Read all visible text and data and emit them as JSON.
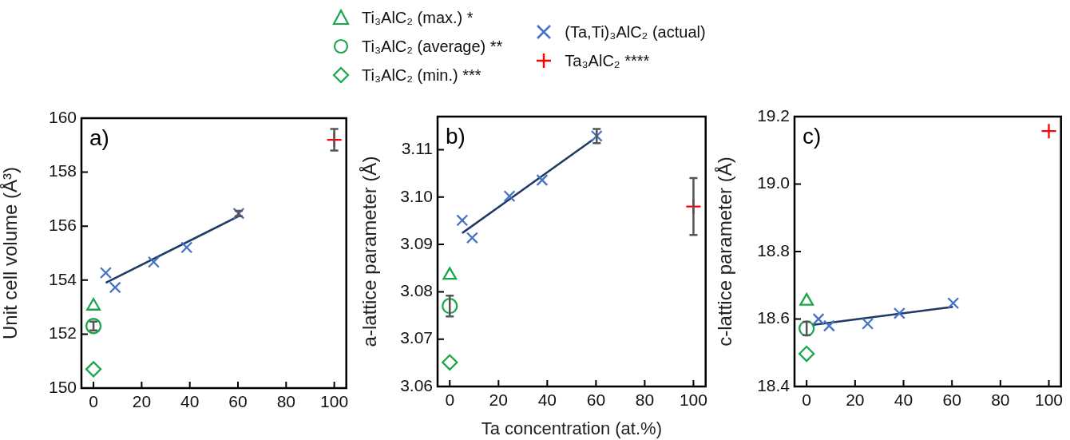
{
  "chart_data": [
    {
      "type": "scatter",
      "ylabel": "Unit cell volume (Å³)",
      "annotations": [
        "a)"
      ],
      "legend": "top",
      "xlim": [
        -5,
        105
      ],
      "xticks": [
        0,
        20,
        40,
        60,
        80,
        100
      ],
      "ylim": [
        150,
        160
      ],
      "yticks": [
        150,
        152,
        154,
        156,
        158,
        160
      ],
      "series": [
        {
          "name": "Ti₃AlC₂ (max.) *",
          "color": "#1aa64a",
          "marker": "triangle",
          "x": [
            0
          ],
          "values": [
            153.04
          ]
        },
        {
          "name": "Ti₃AlC₂ (average) **",
          "color": "#1aa64a",
          "marker": "circle",
          "x": [
            0
          ],
          "values": [
            152.3
          ],
          "errors": [
            0.16
          ]
        },
        {
          "name": "Ti₃AlC₂ (min.) ***",
          "color": "#1aa64a",
          "marker": "diamond",
          "x": [
            0
          ],
          "values": [
            150.7
          ]
        },
        {
          "name": "(Ta,Ti)₃AlC₂ (actual)",
          "color": "#4472c4",
          "marker": "x",
          "x": [
            5.1,
            9,
            25,
            38.7,
            60.3
          ],
          "values": [
            154.27,
            153.73,
            154.67,
            155.21,
            156.47
          ],
          "errors": [
            null,
            null,
            null,
            null,
            0.1
          ]
        },
        {
          "name": "Ta₃AlC₂ ****",
          "color": "#ff0000",
          "marker": "cross",
          "x": [
            100
          ],
          "values": [
            159.2
          ],
          "errors": [
            0.4
          ]
        },
        {
          "type": "line",
          "color": "#1f3864",
          "marker": "none",
          "x": [
            5.1,
            61
          ],
          "values": [
            153.9,
            156.4
          ]
        }
      ]
    },
    {
      "type": "scatter",
      "xlabel": "Ta concentration (at.%)",
      "ylabel": "a-lattice parameter (Å)",
      "annotations": [
        "b)"
      ],
      "xlim": [
        -5,
        105
      ],
      "xticks": [
        0,
        20,
        40,
        60,
        80,
        100
      ],
      "ylim": [
        3.06,
        3.117
      ],
      "yticks": [
        3.06,
        3.07,
        3.08,
        3.09,
        {
          "value": 3.1,
          "label": "3.10"
        },
        3.11
      ],
      "series": [
        {
          "color": "#1aa64a",
          "marker": "triangle",
          "x": [
            0
          ],
          "values": [
            3.0835
          ]
        },
        {
          "color": "#1aa64a",
          "marker": "circle",
          "x": [
            0
          ],
          "values": [
            3.077
          ],
          "errors": [
            0.0022
          ]
        },
        {
          "color": "#1aa64a",
          "marker": "diamond",
          "x": [
            0
          ],
          "values": [
            3.0651
          ]
        },
        {
          "color": "#4472c4",
          "marker": "x",
          "x": [
            5.1,
            9.2,
            24.5,
            37.9,
            60.3
          ],
          "values": [
            3.0951,
            3.0914,
            3.1002,
            3.1036,
            3.1129
          ],
          "errors": [
            null,
            null,
            null,
            null,
            0.0015
          ]
        },
        {
          "color": "#ff0000",
          "marker": "cross",
          "x": [
            100
          ],
          "values": [
            3.098
          ],
          "errors": [
            0.006
          ]
        },
        {
          "type": "line",
          "color": "#1f3864",
          "marker": "none",
          "x": [
            5.1,
            58.7
          ],
          "values": [
            3.0924,
            3.1121
          ]
        }
      ]
    },
    {
      "type": "scatter",
      "ylabel": "c-lattice parameter (Å)",
      "annotations": [
        "c)"
      ],
      "xlim": [
        -5,
        105
      ],
      "xticks": [
        0,
        20,
        40,
        60,
        80,
        100
      ],
      "ylim": [
        18.4,
        19.2
      ],
      "yticks": [
        18.4,
        18.6,
        18.8,
        {
          "value": 19,
          "label": "19.0"
        },
        19.2
      ],
      "series": [
        {
          "color": "#1aa64a",
          "marker": "triangle",
          "x": [
            0
          ],
          "values": [
            18.653
          ]
        },
        {
          "color": "#1aa64a",
          "marker": "circle",
          "x": [
            0
          ],
          "values": [
            18.572
          ],
          "errors": [
            0.02
          ]
        },
        {
          "color": "#1aa64a",
          "marker": "diamond",
          "x": [
            0
          ],
          "values": [
            18.497
          ]
        },
        {
          "color": "#4472c4",
          "marker": "x",
          "x": [
            4.9,
            9.3,
            25.2,
            38.3,
            60.5
          ],
          "values": [
            18.6,
            18.58,
            18.586,
            18.617,
            18.647
          ]
        },
        {
          "color": "#ff0000",
          "marker": "cross",
          "x": [
            100
          ],
          "values": [
            19.157
          ]
        },
        {
          "type": "line",
          "color": "#1f3864",
          "marker": "none",
          "x": [
            2.2,
            60.4
          ],
          "values": [
            18.582,
            18.636
          ]
        }
      ]
    }
  ]
}
